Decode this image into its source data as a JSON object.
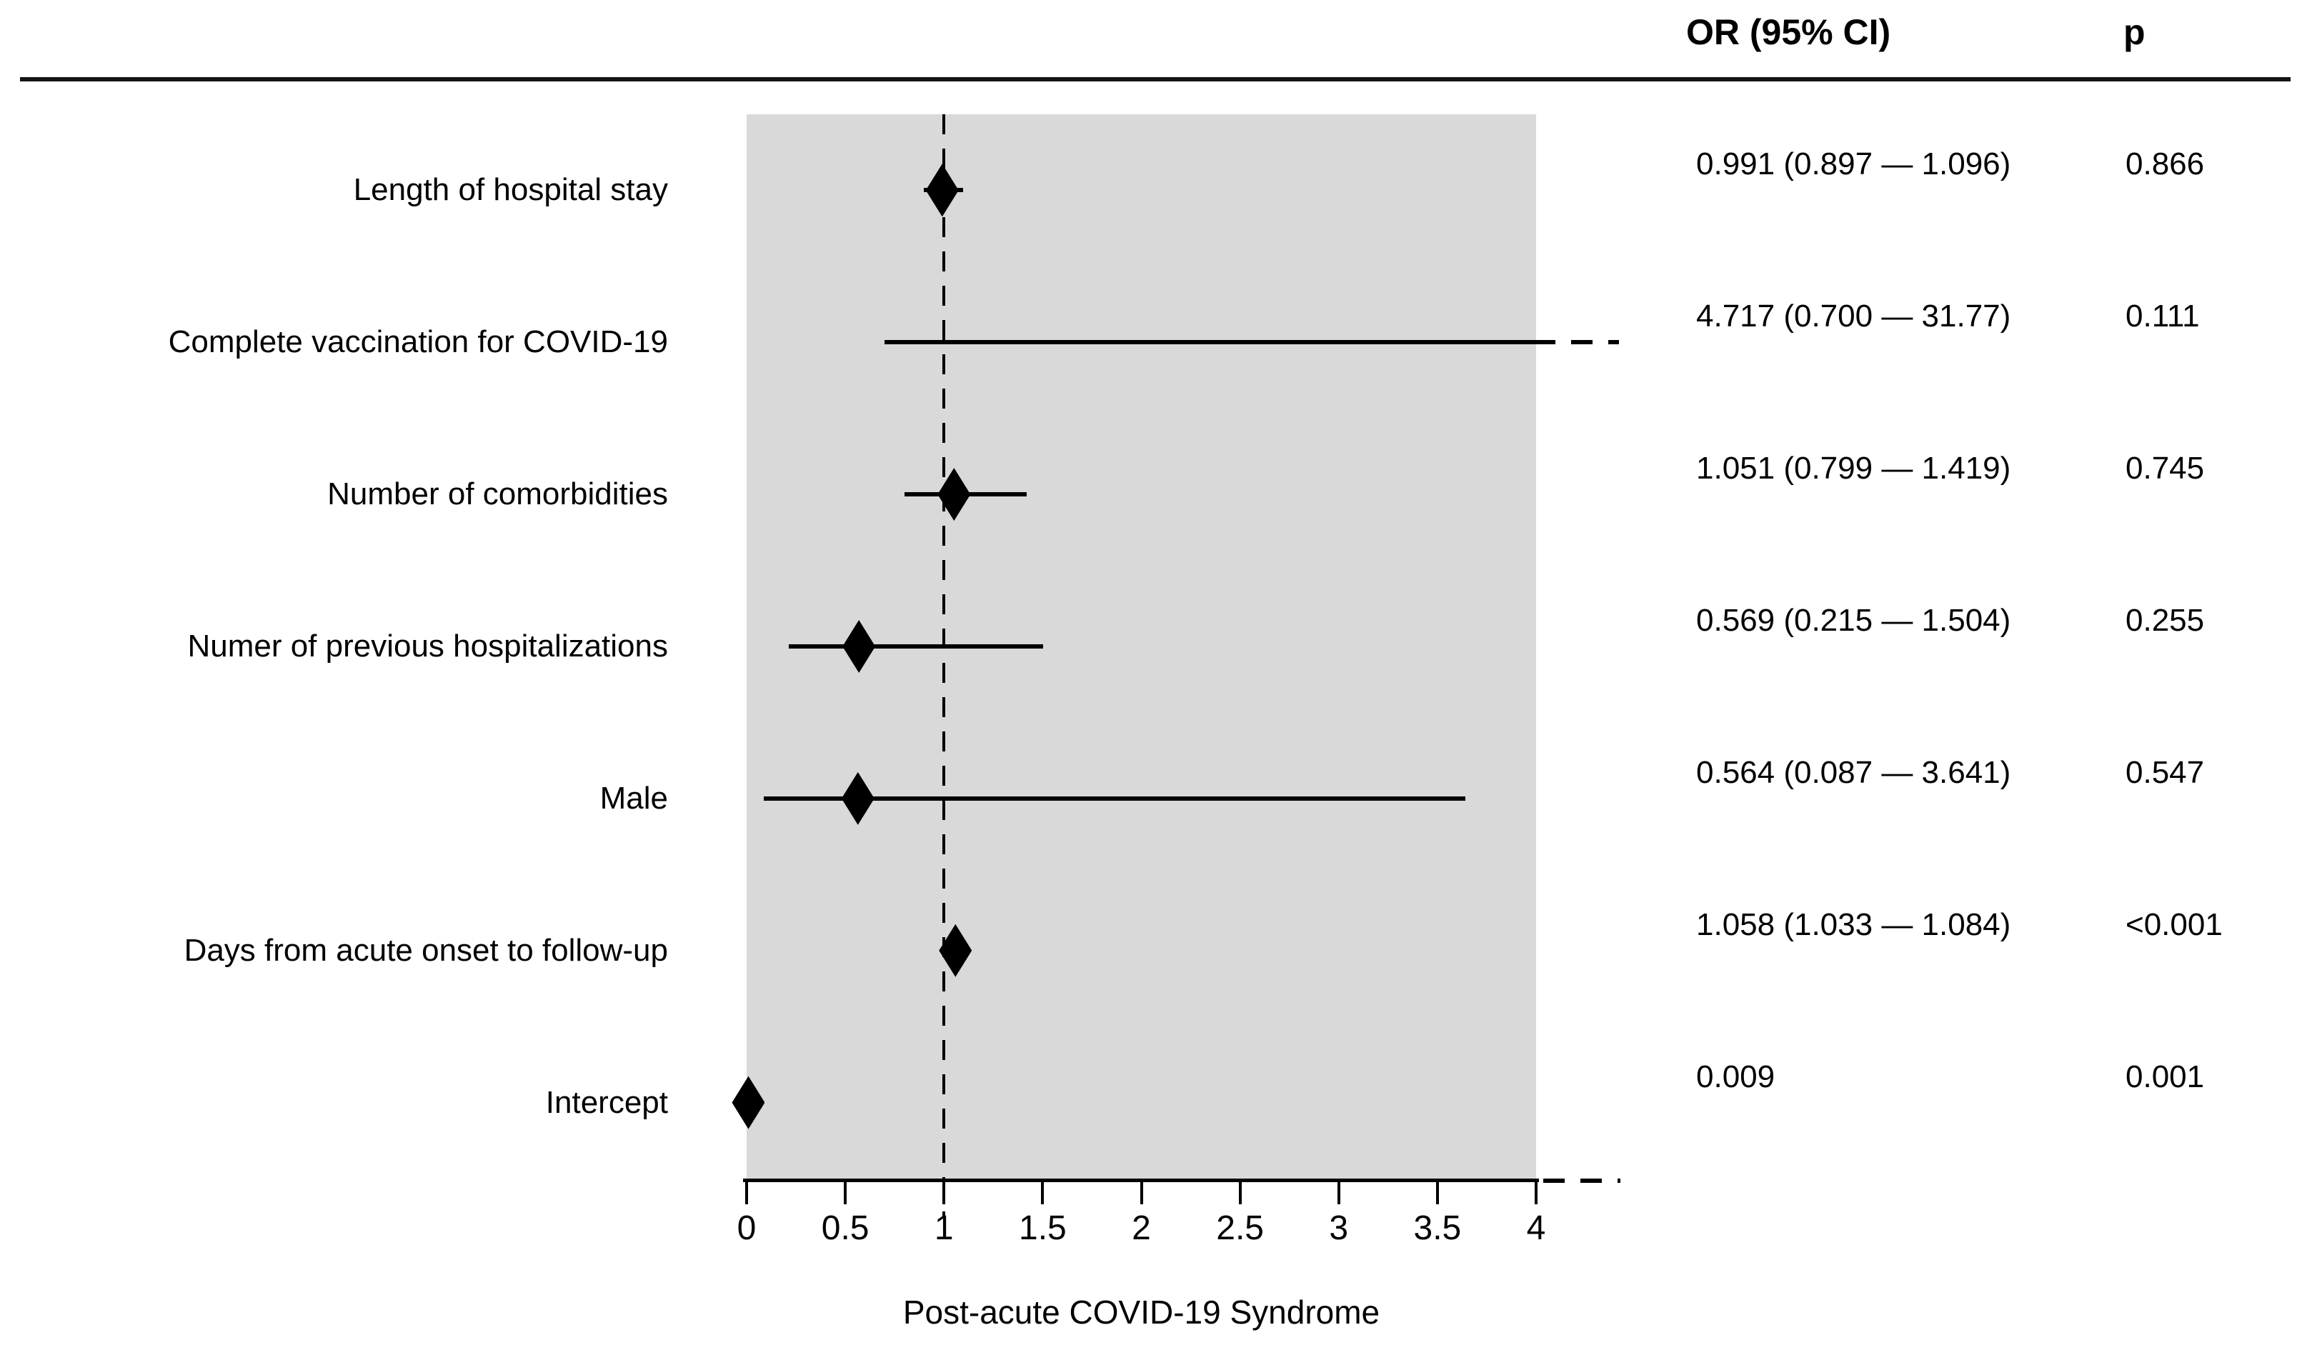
{
  "colors": {
    "plot_background": "#d9d9d9",
    "ink": "#000000",
    "page_background": "#ffffff"
  },
  "table": {
    "or_column_header": "OR (95% CI)",
    "p_column_header": "p"
  },
  "chart_data": {
    "type": "scatter",
    "subtype": "forest-plot",
    "title": "",
    "xlabel": "Post-acute COVID-19 Syndrome",
    "xlim": [
      0,
      4
    ],
    "x_tick_labels": [
      "0",
      "0.5",
      "1",
      "1.5",
      "2",
      "2.5",
      "3",
      "3.5",
      "4"
    ],
    "x_tick_values": [
      0,
      0.5,
      1,
      1.5,
      2,
      2.5,
      3,
      3.5,
      4
    ],
    "reference_line_x": 1,
    "grid": false,
    "legend": false,
    "axis_truncated_right": true,
    "rows": [
      {
        "label": "Length of hospital stay",
        "or": 0.991,
        "ci_low": 0.897,
        "ci_high": 1.096,
        "or_text": "0.991 (0.897 — 1.096)",
        "p": "0.866",
        "ci_truncated": false
      },
      {
        "label": "Complete vaccination for COVID-19",
        "or": 4.717,
        "ci_low": 0.7,
        "ci_high": 31.77,
        "or_text": "4.717 (0.700 — 31.77)",
        "p": "0.111",
        "ci_truncated": true
      },
      {
        "label": "Number of comorbidities",
        "or": 1.051,
        "ci_low": 0.799,
        "ci_high": 1.419,
        "or_text": "1.051 (0.799 — 1.419)",
        "p": "0.745",
        "ci_truncated": false
      },
      {
        "label": "Numer of previous hospitalizations",
        "or": 0.569,
        "ci_low": 0.215,
        "ci_high": 1.504,
        "or_text": "0.569 (0.215 — 1.504)",
        "p": "0.255",
        "ci_truncated": false
      },
      {
        "label": "Male",
        "or": 0.564,
        "ci_low": 0.087,
        "ci_high": 3.641,
        "or_text": "0.564 (0.087 — 3.641)",
        "p": "0.547",
        "ci_truncated": false
      },
      {
        "label": "Days from acute onset to follow-up",
        "or": 1.058,
        "ci_low": 1.033,
        "ci_high": 1.084,
        "or_text": "1.058 (1.033 — 1.084)",
        "p": "<0.001",
        "ci_truncated": false
      },
      {
        "label": "Intercept",
        "or": 0.009,
        "ci_low": null,
        "ci_high": null,
        "or_text": "0.009",
        "p": "0.001",
        "ci_truncated": false
      }
    ]
  }
}
